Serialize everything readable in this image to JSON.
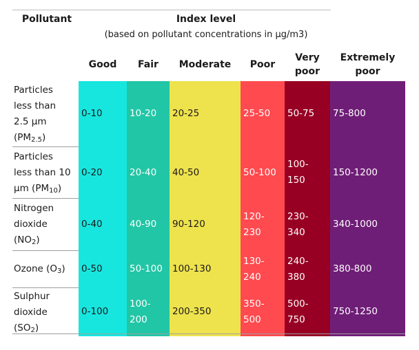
{
  "header": {
    "pollutant_label": "Pollutant",
    "index_label": "Index level",
    "index_sub": "(based on pollutant concentrations in µg/m3)"
  },
  "levels": [
    {
      "label": "Good",
      "color": "#17e6df"
    },
    {
      "label": "Fair",
      "color": "#21c6a6"
    },
    {
      "label": "Moderate",
      "color": "#eee24d"
    },
    {
      "label": "Poor",
      "color": "#ff4a4f"
    },
    {
      "label": "Very poor",
      "color": "#980023"
    },
    {
      "label": "Extremely poor",
      "color": "#6f1e77"
    }
  ],
  "rows": [
    {
      "pollutant": {
        "lines": [
          "Particles",
          "less than",
          "2.5 µm"
        ],
        "abbr": "PM",
        "sub": "2.5"
      },
      "values": [
        "0-10",
        "10-20",
        "20-25",
        "25-50",
        "50-75",
        "75-800"
      ]
    },
    {
      "pollutant": {
        "lines": [
          "Particles",
          "less than 10",
          "µm"
        ],
        "abbr": "PM",
        "sub": "10"
      },
      "values": [
        "0-20",
        "20-40",
        "40-50",
        "50-100",
        "100-150",
        "150-1200"
      ]
    },
    {
      "pollutant": {
        "lines": [
          "Nitrogen",
          "dioxide"
        ],
        "abbr": "NO",
        "sub": "2"
      },
      "values": [
        "0-40",
        "40-90",
        "90-120",
        "120-230",
        "230-340",
        "340-1000"
      ]
    },
    {
      "pollutant": {
        "lines": [
          "Ozone"
        ],
        "abbr": "O",
        "sub": "3"
      },
      "values": [
        "0-50",
        "50-100",
        "100-130",
        "130-240",
        "240-380",
        "380-800"
      ]
    },
    {
      "pollutant": {
        "lines": [
          "Sulphur",
          "dioxide"
        ],
        "abbr": "SO",
        "sub": "2"
      },
      "values": [
        "0-100",
        "100-200",
        "200-350",
        "350-500",
        "500-750",
        "750-1250"
      ]
    }
  ]
}
